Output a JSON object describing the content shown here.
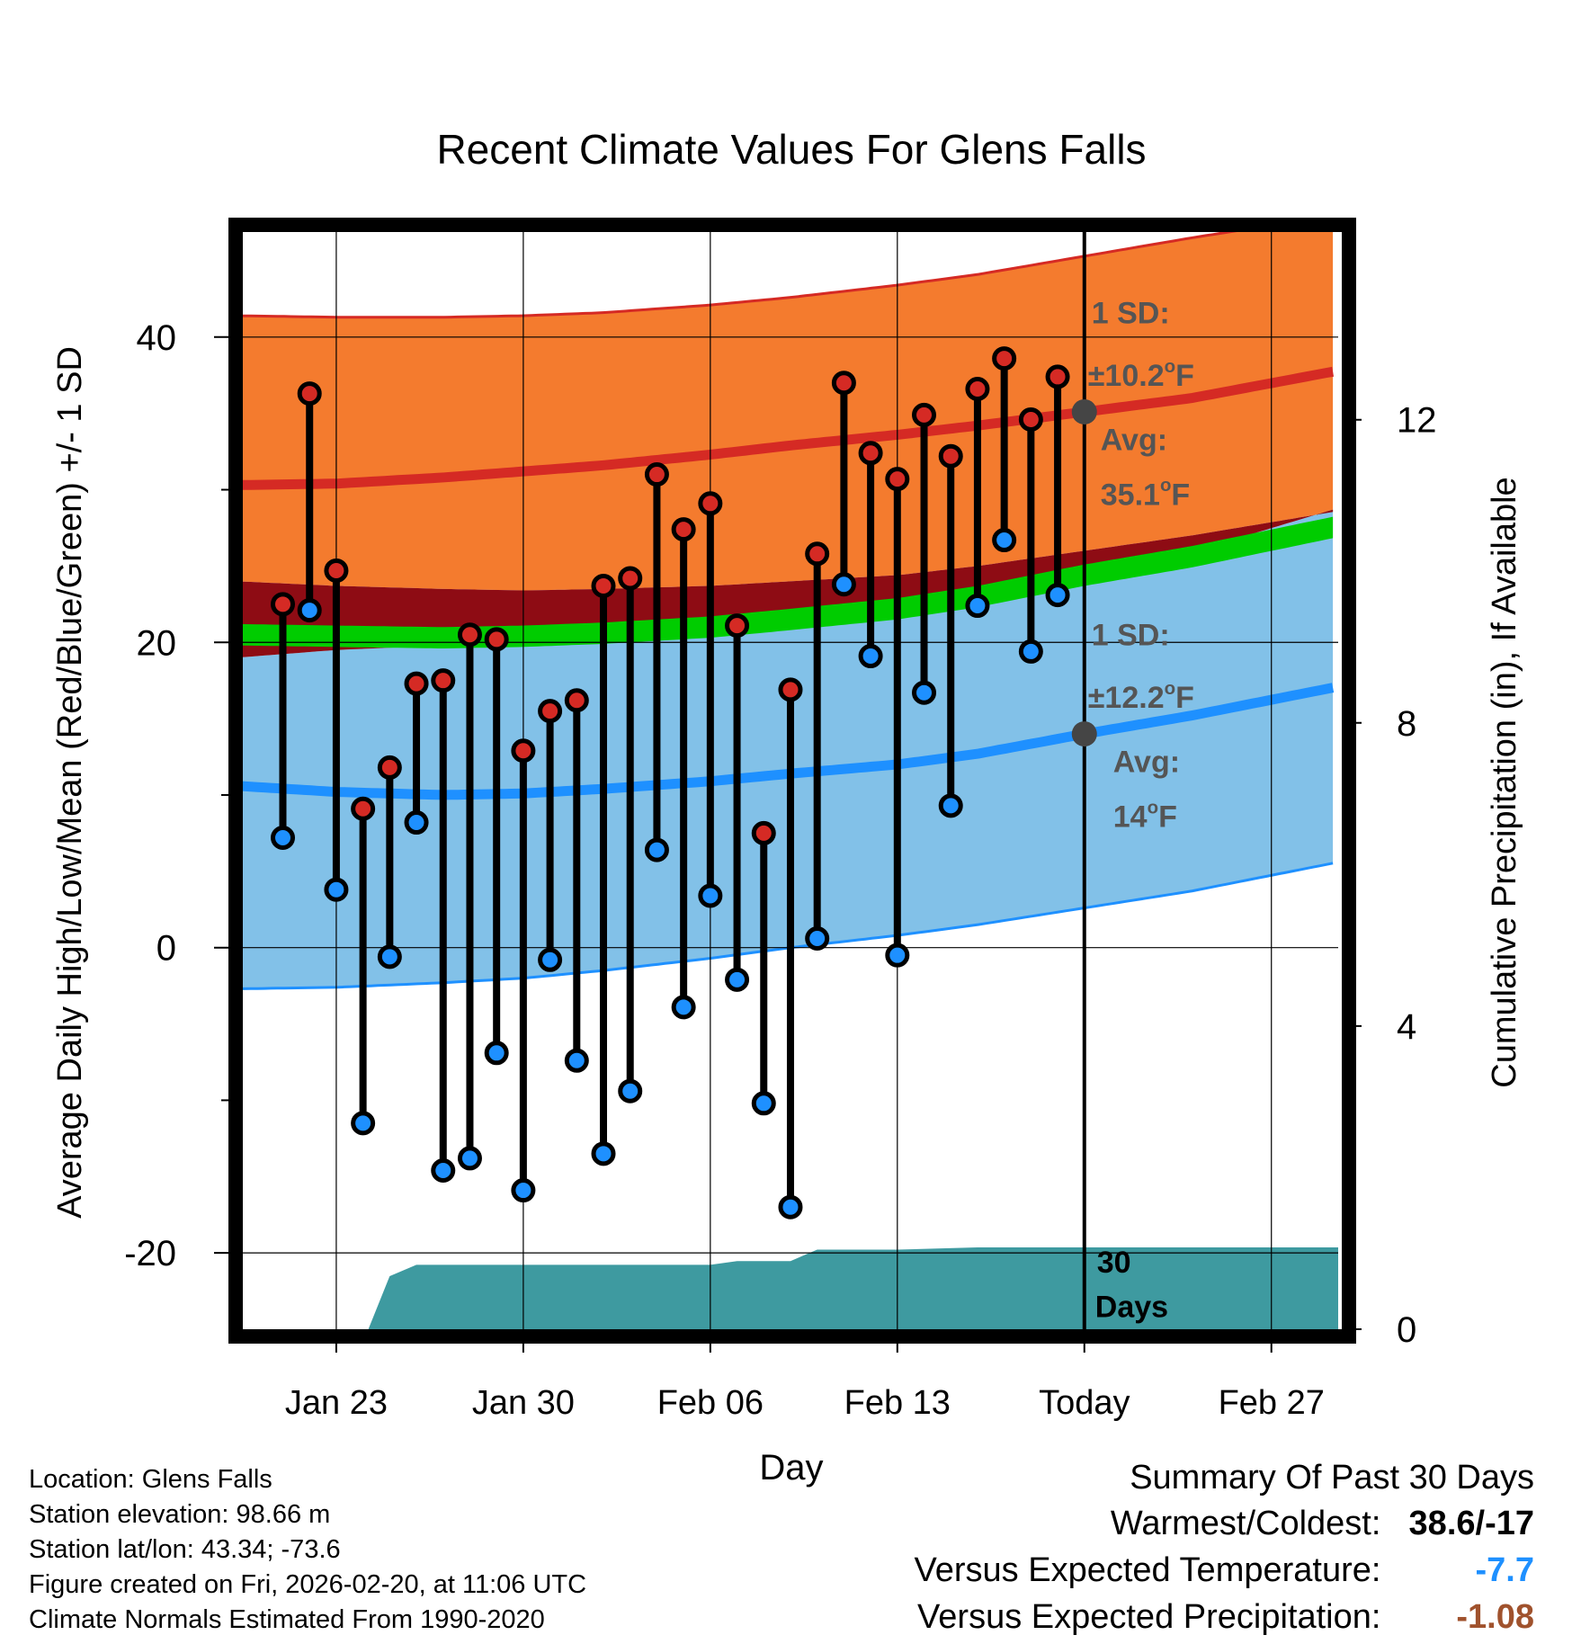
{
  "chart_data": {
    "type": "line",
    "title": "Recent Climate Values For Glens Falls",
    "xlabel": "Day",
    "ylabel_left": "Average Daily High/Low/Mean (Red/Blue/Green) +/- 1 SD",
    "ylabel_right": "Cumulative Precipitation (in), If Available",
    "ylim_left": [
      -25,
      47
    ],
    "ylim_right": [
      0,
      14.5
    ],
    "xlim_days": [
      -31.7,
      9.5
    ],
    "x_ticks": [
      {
        "day": -28,
        "label": "Jan 23"
      },
      {
        "day": -21,
        "label": "Jan 30"
      },
      {
        "day": -14,
        "label": "Feb 06"
      },
      {
        "day": -7,
        "label": "Feb 13"
      },
      {
        "day": 0,
        "label": "Today"
      },
      {
        "day": 7,
        "label": "Feb 27"
      }
    ],
    "y_ticks_left": [
      -20,
      0,
      20,
      40
    ],
    "y_minor_left": [
      -10,
      10,
      30
    ],
    "y_ticks_right": [
      0,
      4,
      8,
      12
    ],
    "normals": {
      "days": [
        -31.7,
        -28,
        -24,
        -21,
        -18,
        -14,
        -11,
        -7,
        -4,
        0,
        4,
        9.5
      ],
      "high_avg": [
        30.3,
        30.4,
        30.8,
        31.2,
        31.6,
        32.3,
        32.9,
        33.6,
        34.2,
        35.1,
        36.0,
        37.8
      ],
      "high_upper": [
        41.4,
        41.3,
        41.3,
        41.4,
        41.6,
        42.1,
        42.6,
        43.4,
        44.1,
        45.3,
        46.5,
        48.0
      ],
      "high_lower": [
        24.0,
        23.7,
        23.5,
        23.4,
        23.5,
        23.7,
        24.0,
        24.4,
        25.0,
        26.0,
        27.0,
        28.6
      ],
      "mean": [
        20.5,
        20.4,
        20.3,
        20.4,
        20.6,
        21.0,
        21.5,
        22.2,
        23.0,
        24.4,
        25.6,
        27.6
      ],
      "low_avg": [
        10.6,
        10.2,
        10.0,
        10.1,
        10.4,
        10.9,
        11.4,
        12.0,
        12.7,
        14.0,
        15.2,
        17.1
      ],
      "low_upper": [
        19.0,
        19.5,
        19.8,
        20.0,
        20.3,
        20.9,
        21.6,
        22.4,
        23.2,
        24.7,
        25.9,
        28.8
      ],
      "low_lower": [
        -2.7,
        -2.6,
        -2.3,
        -2.0,
        -1.5,
        -0.7,
        0.0,
        0.8,
        1.5,
        2.6,
        3.7,
        5.6
      ]
    },
    "observed": [
      {
        "day": -30,
        "high": 22.5,
        "low": 7.2
      },
      {
        "day": -29,
        "high": 36.3,
        "low": 22.1
      },
      {
        "day": -28,
        "high": 24.7,
        "low": 3.8
      },
      {
        "day": -27,
        "high": 9.1,
        "low": -11.5
      },
      {
        "day": -26,
        "high": 11.8,
        "low": -0.6
      },
      {
        "day": -25,
        "high": 17.3,
        "low": 8.2
      },
      {
        "day": -24,
        "high": 17.5,
        "low": -14.6
      },
      {
        "day": -23,
        "high": 20.5,
        "low": -13.8
      },
      {
        "day": -22,
        "high": 20.2,
        "low": -6.9
      },
      {
        "day": -21,
        "high": 12.9,
        "low": -15.9
      },
      {
        "day": -20,
        "high": 15.5,
        "low": -0.8
      },
      {
        "day": -19,
        "high": 16.2,
        "low": -7.4
      },
      {
        "day": -18,
        "high": 23.7,
        "low": -13.5
      },
      {
        "day": -17,
        "high": 24.2,
        "low": -9.4
      },
      {
        "day": -16,
        "high": 31.0,
        "low": 6.4
      },
      {
        "day": -15,
        "high": 27.4,
        "low": -3.9
      },
      {
        "day": -14,
        "high": 29.1,
        "low": 3.4
      },
      {
        "day": -13,
        "high": 21.1,
        "low": -2.1
      },
      {
        "day": -12,
        "high": 7.5,
        "low": -10.2
      },
      {
        "day": -11,
        "high": 16.9,
        "low": -17.0
      },
      {
        "day": -10,
        "high": 25.8,
        "low": 0.6
      },
      {
        "day": -9,
        "high": 37.0,
        "low": 23.8
      },
      {
        "day": -8,
        "high": 32.4,
        "low": 19.1
      },
      {
        "day": -7,
        "high": 30.7,
        "low": -0.5
      },
      {
        "day": -6,
        "high": 34.9,
        "low": 16.7
      },
      {
        "day": -5,
        "high": 32.2,
        "low": 9.3
      },
      {
        "day": -4,
        "high": 36.6,
        "low": 22.4
      },
      {
        "day": -3,
        "high": 38.6,
        "low": 26.7
      },
      {
        "day": -2,
        "high": 34.6,
        "low": 19.4
      },
      {
        "day": -1,
        "high": 37.4,
        "low": 23.1
      }
    ],
    "precip": {
      "days": [
        -31.7,
        -26.8,
        -26,
        -25,
        -14,
        -13,
        -11,
        -10,
        -7,
        -4,
        0,
        9.5
      ],
      "values": [
        0,
        0,
        0.7,
        0.85,
        0.85,
        0.9,
        0.9,
        1.05,
        1.05,
        1.08,
        1.08,
        1.08
      ]
    },
    "today_annotations": {
      "high_sd": "1 SD:",
      "high_sd_value": "±10.2",
      "high_avg_label": "Avg:",
      "high_avg_value": "35.1",
      "low_sd": "1 SD:",
      "low_sd_value": "±12.2",
      "low_avg_label": "Avg:",
      "low_avg_value": "14",
      "degree_unit": "F",
      "degree_sup": "o",
      "days_count": "30",
      "days_word": "Days"
    },
    "colors": {
      "high_band": "#f47b2e",
      "high_line": "#d52a24",
      "low_band": "#82c1e8",
      "low_line": "#1e90ff",
      "mean_band": "#00cc00",
      "overlap": "#8e0c14",
      "precip": "#3e9aa0",
      "marker_high": "#d52a24",
      "marker_low": "#1e90ff",
      "avg_dot": "#454545",
      "annotation": "#555555"
    }
  },
  "info": {
    "location": "Location: Glens Falls",
    "elevation": "Station elevation: 98.66 m",
    "latlon": "Station lat/lon: 43.34; -73.6",
    "created": "Figure created on Fri, 2026-02-20, at 11:06 UTC",
    "normals": "Climate Normals Estimated From 1990-2020"
  },
  "summary": {
    "title": "Summary Of Past 30 Days",
    "warm_label": "Warmest/Coldest:",
    "warm_value": "38.6/-17",
    "temp_label": "Versus Expected Temperature:",
    "temp_value": "-7.7",
    "temp_color": "#1e90ff",
    "precip_label": "Versus Expected Precipitation:",
    "precip_value": "-1.08",
    "precip_color": "#a0522d"
  }
}
